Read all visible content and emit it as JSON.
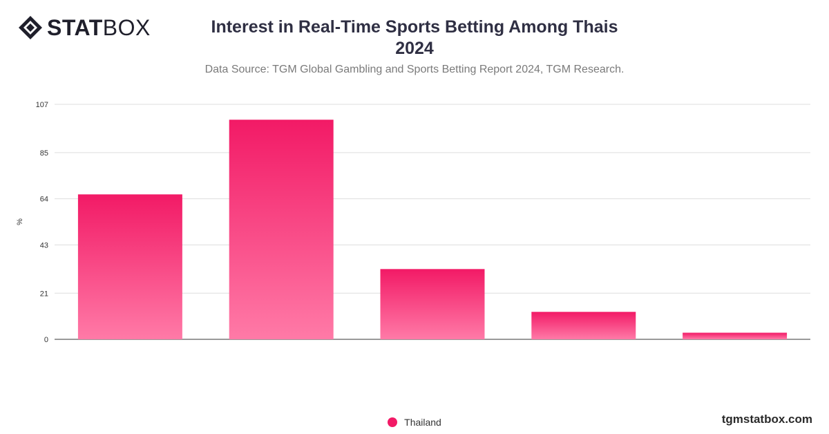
{
  "brand": {
    "name_bold": "STAT",
    "name_light": "BOX"
  },
  "header": {
    "title_line1": "Interest in Real-Time Sports Betting Among Thais",
    "title_line2": "2024",
    "subtitle": "Data Source: TGM Global Gambling and Sports Betting Report 2024, TGM Research."
  },
  "footer": {
    "site": "tgmstatbox.com"
  },
  "colors": {
    "bar_top": "#f21a66",
    "bar_bottom": "#ff7aa7",
    "grid": "#dddddd",
    "axis": "#333333",
    "text": "#2f2f43"
  },
  "chart_data": {
    "type": "bar",
    "title": "Interest in Real-Time Sports Betting Among Thais 2024",
    "subtitle": "Data Source: TGM Global Gambling and Sports Betting Report 2024, TGM Research.",
    "ylabel": "%",
    "xlabel": "",
    "categories": [
      "",
      "",
      "",
      "",
      ""
    ],
    "yticks": [
      0,
      21,
      43,
      64,
      85,
      107
    ],
    "ylim": [
      0,
      107
    ],
    "grid": true,
    "legend_position": "bottom-center",
    "series": [
      {
        "name": "Thailand",
        "values": [
          66,
          100,
          32,
          12.5,
          3
        ]
      }
    ]
  }
}
